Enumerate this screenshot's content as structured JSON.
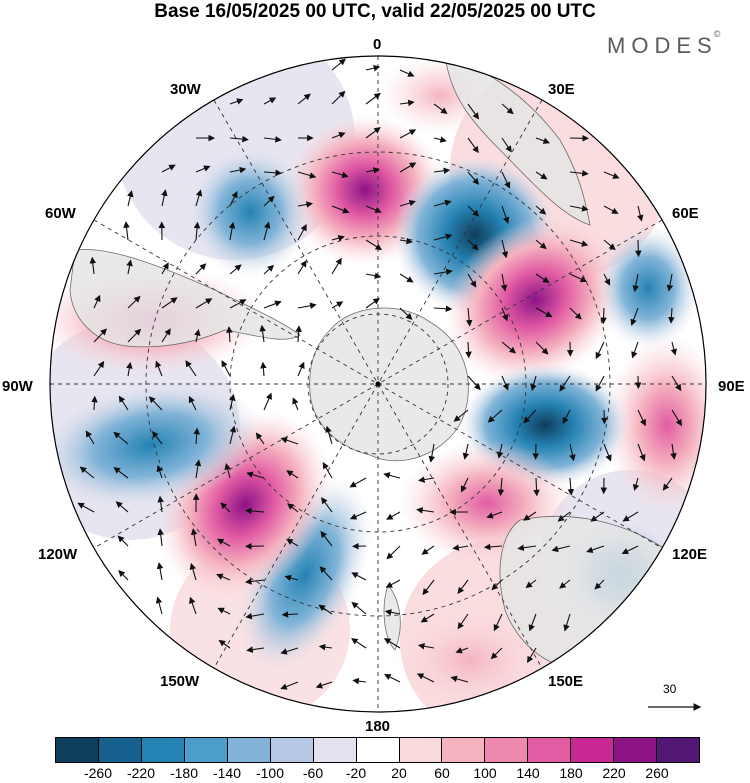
{
  "title": "Base 16/05/2025 00 UTC, valid 22/05/2025 00 UTC",
  "brand": "MODES",
  "brand_mark": "©",
  "longitude_labels": {
    "lon_0": "0",
    "lon_30e": "30E",
    "lon_60e": "60E",
    "lon_90e": "90E",
    "lon_120e": "120E",
    "lon_150e": "150E",
    "lon_180": "180",
    "lon_150w": "150W",
    "lon_120w": "120W",
    "lon_90w": "90W",
    "lon_60w": "60W",
    "lon_30w": "30W"
  },
  "reference_vector_label": "30",
  "colorbar": {
    "colors": [
      "#0f3d5c",
      "#15608c",
      "#2583b4",
      "#4a9fc9",
      "#82b4d8",
      "#b7c9e4",
      "#e4e2ee",
      "#ffffff",
      "#f9d9dc",
      "#f5b3bf",
      "#ee88ae",
      "#e25ca4",
      "#c92993",
      "#8c1386",
      "#521774"
    ],
    "ticks": [
      "-260",
      "-220",
      "-180",
      "-140",
      "-100",
      "-60",
      "-20",
      "20",
      "60",
      "100",
      "140",
      "180",
      "220",
      "260"
    ]
  },
  "map_colors": {
    "ocean": "#ffffff",
    "land": "#e6e6e6",
    "graticule": "#333333"
  },
  "anomaly_centers": [
    {
      "name": "pos-0",
      "value": 200
    },
    {
      "name": "neg-20e",
      "value": -260
    },
    {
      "name": "pos-50e",
      "value": 260
    },
    {
      "name": "neg-65e",
      "value": -160
    },
    {
      "name": "pos-90e",
      "value": 120
    },
    {
      "name": "neg-80e",
      "value": -220
    },
    {
      "name": "pos-120e",
      "value": 160
    },
    {
      "name": "neg-115e",
      "value": -140
    },
    {
      "name": "pos-155e",
      "value": 100
    },
    {
      "name": "neg-160w",
      "value": -160
    },
    {
      "name": "pos-135w",
      "value": 240
    },
    {
      "name": "neg-100w",
      "value": -180
    },
    {
      "name": "pos-80w",
      "value": 120
    },
    {
      "name": "neg-40w",
      "value": -140
    },
    {
      "name": "pos-20w",
      "value": 40
    }
  ]
}
